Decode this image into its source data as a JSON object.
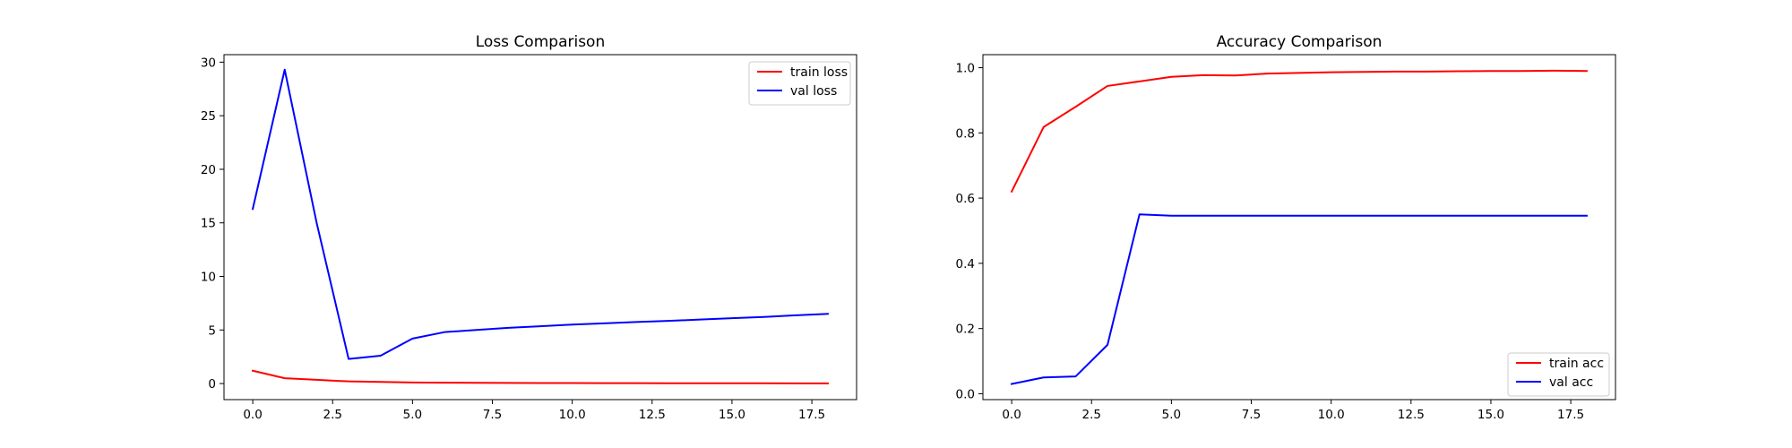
{
  "chart_data": [
    {
      "type": "line",
      "title": "Loss Comparison",
      "xlabel": "",
      "ylabel": "",
      "x": [
        0,
        1,
        2,
        3,
        4,
        5,
        6,
        7,
        8,
        9,
        10,
        11,
        12,
        13,
        14,
        15,
        16,
        17,
        18
      ],
      "xlim": [
        -0.9,
        18.9
      ],
      "ylim": [
        -1.5,
        30.7
      ],
      "xticks": [
        0.0,
        2.5,
        5.0,
        7.5,
        10.0,
        12.5,
        15.0,
        17.5
      ],
      "xtick_labels": [
        "0.0",
        "2.5",
        "5.0",
        "7.5",
        "10.0",
        "12.5",
        "15.0",
        "17.5"
      ],
      "yticks": [
        0,
        5,
        10,
        15,
        20,
        25,
        30
      ],
      "ytick_labels": [
        "0",
        "5",
        "10",
        "15",
        "20",
        "25",
        "30"
      ],
      "legend_position": "top-right",
      "grid": false,
      "series": [
        {
          "name": "train loss",
          "color": "#ff0000",
          "values": [
            1.2,
            0.5,
            0.35,
            0.2,
            0.15,
            0.1,
            0.08,
            0.07,
            0.06,
            0.05,
            0.05,
            0.04,
            0.04,
            0.03,
            0.03,
            0.03,
            0.03,
            0.02,
            0.02
          ]
        },
        {
          "name": "val loss",
          "color": "#0000ff",
          "values": [
            16.3,
            29.3,
            15.0,
            2.3,
            2.6,
            4.2,
            4.8,
            5.0,
            5.2,
            5.35,
            5.5,
            5.62,
            5.75,
            5.85,
            5.97,
            6.1,
            6.22,
            6.37,
            6.5
          ]
        }
      ]
    },
    {
      "type": "line",
      "title": "Accuracy Comparison",
      "xlabel": "",
      "ylabel": "",
      "x": [
        0,
        1,
        2,
        3,
        4,
        5,
        6,
        7,
        8,
        9,
        10,
        11,
        12,
        13,
        14,
        15,
        16,
        17,
        18
      ],
      "xlim": [
        -0.9,
        18.9
      ],
      "ylim": [
        -0.018,
        1.04
      ],
      "xticks": [
        0.0,
        2.5,
        5.0,
        7.5,
        10.0,
        12.5,
        15.0,
        17.5
      ],
      "xtick_labels": [
        "0.0",
        "2.5",
        "5.0",
        "7.5",
        "10.0",
        "12.5",
        "15.0",
        "17.5"
      ],
      "yticks": [
        0.0,
        0.2,
        0.4,
        0.6,
        0.8,
        1.0
      ],
      "ytick_labels": [
        "0.0",
        "0.2",
        "0.4",
        "0.6",
        "0.8",
        "1.0"
      ],
      "legend_position": "bottom-right",
      "grid": false,
      "series": [
        {
          "name": "train acc",
          "color": "#ff0000",
          "values": [
            0.62,
            0.818,
            0.88,
            0.944,
            0.958,
            0.972,
            0.977,
            0.976,
            0.982,
            0.984,
            0.986,
            0.987,
            0.988,
            0.988,
            0.989,
            0.99,
            0.99,
            0.991,
            0.99
          ]
        },
        {
          "name": "val acc",
          "color": "#0000ff",
          "values": [
            0.03,
            0.05,
            0.053,
            0.15,
            0.55,
            0.546,
            0.546,
            0.546,
            0.546,
            0.546,
            0.546,
            0.546,
            0.546,
            0.546,
            0.546,
            0.546,
            0.546,
            0.546,
            0.546
          ]
        }
      ]
    }
  ]
}
